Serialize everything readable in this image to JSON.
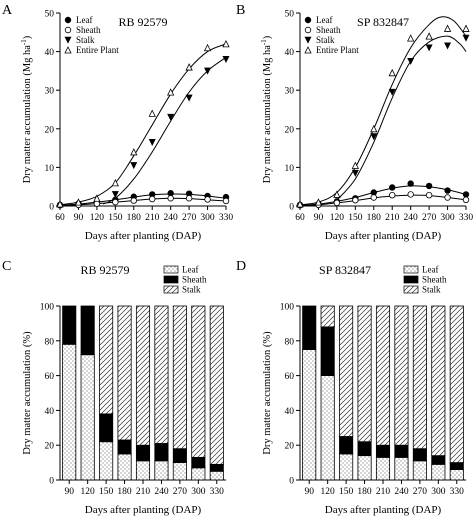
{
  "chart_data": [
    {
      "panel_label": "A",
      "type": "line",
      "title": "RB 92579",
      "xlabel": "Days after planting (DAP)",
      "ylabel_main": "Dry matter accumulation (Mg ha",
      "ylabel_sup": "-1",
      "ylabel_end": ")",
      "xlim": [
        60,
        330
      ],
      "ylim": [
        0,
        50
      ],
      "xticks": [
        60,
        90,
        120,
        150,
        180,
        210,
        240,
        270,
        300,
        330
      ],
      "yticks": [
        0,
        10,
        20,
        30,
        40,
        50
      ],
      "legend_position": "top-left",
      "series": [
        {
          "name": "Leaf",
          "marker": "filled-circle",
          "x": [
            60,
            90,
            120,
            150,
            180,
            210,
            240,
            270,
            300,
            330
          ],
          "values": [
            0.3,
            0.6,
            1.0,
            1.6,
            2.4,
            3.0,
            3.3,
            3.2,
            2.6,
            2.3
          ],
          "fit": [
            [
              60,
              0.2
            ],
            [
              90,
              0.5
            ],
            [
              120,
              1.0
            ],
            [
              150,
              1.6
            ],
            [
              180,
              2.3
            ],
            [
              210,
              2.9
            ],
            [
              240,
              3.1
            ],
            [
              270,
              3.0
            ],
            [
              300,
              2.6
            ],
            [
              330,
              2.0
            ]
          ]
        },
        {
          "name": "Sheath",
          "marker": "open-circle",
          "x": [
            60,
            90,
            120,
            150,
            180,
            210,
            240,
            270,
            300,
            330
          ],
          "values": [
            0.2,
            0.3,
            0.6,
            1.0,
            1.4,
            1.8,
            2.0,
            2.0,
            1.7,
            1.3
          ],
          "fit": [
            [
              60,
              0.1
            ],
            [
              90,
              0.3
            ],
            [
              120,
              0.6
            ],
            [
              150,
              1.0
            ],
            [
              180,
              1.4
            ],
            [
              210,
              1.8
            ],
            [
              240,
              2.0
            ],
            [
              270,
              1.9
            ],
            [
              300,
              1.6
            ],
            [
              330,
              1.3
            ]
          ]
        },
        {
          "name": "Stalk",
          "marker": "filled-triangle-down",
          "x": [
            150,
            180,
            210,
            240,
            270,
            300,
            330
          ],
          "values": [
            3.0,
            10.5,
            16.5,
            23.0,
            28.0,
            35.0,
            38.0
          ],
          "fit": [
            [
              130,
              0.5
            ],
            [
              150,
              2.0
            ],
            [
              180,
              7.0
            ],
            [
              210,
              14.0
            ],
            [
              240,
              22.0
            ],
            [
              270,
              29.5
            ],
            [
              300,
              35.0
            ],
            [
              330,
              38.5
            ]
          ]
        },
        {
          "name": "Entire Plant",
          "marker": "open-triangle-up",
          "x": [
            60,
            90,
            120,
            150,
            180,
            210,
            240,
            270,
            300,
            330
          ],
          "values": [
            0.5,
            1.0,
            2.0,
            6.0,
            14.0,
            24.0,
            29.5,
            36.0,
            41.0,
            42.0
          ],
          "fit": [
            [
              60,
              0.3
            ],
            [
              90,
              1.0
            ],
            [
              120,
              2.5
            ],
            [
              150,
              6.0
            ],
            [
              180,
              13.0
            ],
            [
              210,
              21.0
            ],
            [
              240,
              29.0
            ],
            [
              270,
              35.5
            ],
            [
              300,
              40.0
            ],
            [
              330,
              42.0
            ]
          ]
        }
      ]
    },
    {
      "panel_label": "B",
      "type": "line",
      "title": "SP 832847",
      "xlabel": "Days after planting (DAP)",
      "ylabel_main": "Dry matter accumulation (Mg ha",
      "ylabel_sup": "-1",
      "ylabel_end": ")",
      "xlim": [
        60,
        330
      ],
      "ylim": [
        0,
        50
      ],
      "xticks": [
        60,
        90,
        120,
        150,
        180,
        210,
        240,
        270,
        300,
        330
      ],
      "yticks": [
        0,
        10,
        20,
        30,
        40,
        50
      ],
      "legend_position": "top-left",
      "series": [
        {
          "name": "Leaf",
          "marker": "filled-circle",
          "x": [
            60,
            90,
            120,
            150,
            180,
            210,
            240,
            270,
            300,
            330
          ],
          "values": [
            0.3,
            0.5,
            1.2,
            2.0,
            3.5,
            4.8,
            5.8,
            5.2,
            4.0,
            3.0
          ],
          "fit": [
            [
              60,
              0.2
            ],
            [
              90,
              0.5
            ],
            [
              120,
              1.2
            ],
            [
              150,
              2.2
            ],
            [
              180,
              3.5
            ],
            [
              210,
              4.6
            ],
            [
              240,
              5.2
            ],
            [
              270,
              5.0
            ],
            [
              300,
              4.2
            ],
            [
              330,
              3.0
            ]
          ]
        },
        {
          "name": "Sheath",
          "marker": "open-circle",
          "x": [
            60,
            90,
            120,
            150,
            180,
            210,
            240,
            270,
            300,
            330
          ],
          "values": [
            0.2,
            0.3,
            0.8,
            1.5,
            2.2,
            2.8,
            3.0,
            2.8,
            2.2,
            1.6
          ],
          "fit": [
            [
              60,
              0.1
            ],
            [
              90,
              0.3
            ],
            [
              120,
              0.8
            ],
            [
              150,
              1.4
            ],
            [
              180,
              2.1
            ],
            [
              210,
              2.6
            ],
            [
              240,
              2.8
            ],
            [
              270,
              2.7
            ],
            [
              300,
              2.2
            ],
            [
              330,
              1.6
            ]
          ]
        },
        {
          "name": "Stalk",
          "marker": "filled-triangle-down",
          "x": [
            150,
            180,
            210,
            240,
            270,
            300,
            330
          ],
          "values": [
            8.5,
            18.0,
            29.5,
            37.5,
            41.0,
            41.5,
            43.5
          ],
          "fit": [
            [
              120,
              1.5
            ],
            [
              150,
              7.0
            ],
            [
              180,
              16.5
            ],
            [
              210,
              28.0
            ],
            [
              240,
              37.5
            ],
            [
              270,
              42.5
            ],
            [
              300,
              44.0
            ],
            [
              320,
              42.0
            ],
            [
              330,
              40.0
            ]
          ]
        },
        {
          "name": "Entire Plant",
          "marker": "open-triangle-up",
          "x": [
            60,
            90,
            120,
            150,
            180,
            210,
            240,
            270,
            300,
            330
          ],
          "values": [
            0.5,
            1.0,
            3.0,
            10.5,
            20.0,
            34.5,
            43.5,
            44.0,
            46.0,
            46.0
          ],
          "fit": [
            [
              60,
              0.3
            ],
            [
              90,
              1.0
            ],
            [
              120,
              3.5
            ],
            [
              150,
              10.0
            ],
            [
              180,
              20.0
            ],
            [
              210,
              31.5
            ],
            [
              240,
              41.0
            ],
            [
              270,
              47.0
            ],
            [
              290,
              49.0
            ],
            [
              310,
              48.0
            ],
            [
              330,
              44.0
            ]
          ]
        }
      ]
    },
    {
      "panel_label": "C",
      "type": "bar",
      "stacked": true,
      "title": "RB 92579",
      "xlabel": "Days after planting (DAP)",
      "ylabel": "Dry matter accumulation (%)",
      "ylim": [
        0,
        100
      ],
      "yticks": [
        0,
        20,
        40,
        60,
        80,
        100
      ],
      "legend_position": "top-right",
      "categories": [
        "90",
        "120",
        "150",
        "180",
        "210",
        "240",
        "270",
        "300",
        "330"
      ],
      "series": [
        {
          "name": "Leaf",
          "pattern": "dots",
          "values": [
            78,
            72,
            22,
            15,
            11,
            11,
            10,
            7,
            5
          ]
        },
        {
          "name": "Sheath",
          "pattern": "solid-black",
          "values": [
            22,
            28,
            16,
            8,
            9,
            10,
            8,
            6,
            4
          ]
        },
        {
          "name": "Stalk",
          "pattern": "hatch",
          "values": [
            0,
            0,
            62,
            77,
            80,
            79,
            82,
            87,
            91
          ]
        }
      ]
    },
    {
      "panel_label": "D",
      "type": "bar",
      "stacked": true,
      "title": "SP 832847",
      "xlabel": "Days after planting (DAP)",
      "ylabel": "Dry matter accumulation (%)",
      "ylim": [
        0,
        100
      ],
      "yticks": [
        0,
        20,
        40,
        60,
        80,
        100
      ],
      "legend_position": "top-right",
      "categories": [
        "90",
        "120",
        "150",
        "180",
        "210",
        "240",
        "270",
        "300",
        "330"
      ],
      "series": [
        {
          "name": "Leaf",
          "pattern": "dots",
          "values": [
            75,
            60,
            15,
            14,
            13,
            13,
            11,
            9,
            6
          ]
        },
        {
          "name": "Sheath",
          "pattern": "solid-black",
          "values": [
            25,
            28,
            10,
            8,
            7,
            7,
            7,
            5,
            4
          ]
        },
        {
          "name": "Stalk",
          "pattern": "hatch",
          "values": [
            0,
            12,
            75,
            78,
            80,
            80,
            82,
            86,
            90
          ]
        }
      ]
    }
  ]
}
